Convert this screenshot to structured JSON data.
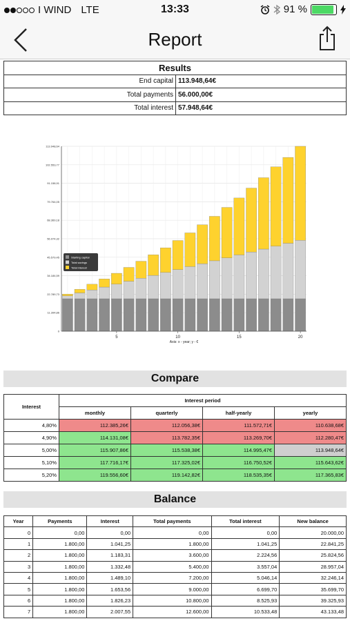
{
  "status": {
    "carrier": "I WIND",
    "network": "LTE",
    "time": "13:33",
    "battery": "91 %"
  },
  "nav": {
    "title": "Report"
  },
  "results": {
    "title": "Results",
    "rows": [
      {
        "label": "End capital",
        "value": "113.948,64€"
      },
      {
        "label": "Total payments",
        "value": "56.000,00€"
      },
      {
        "label": "Total interest",
        "value": "57.948,64€"
      }
    ]
  },
  "chart_data": {
    "type": "bar",
    "stacked": true,
    "x": [
      1,
      2,
      3,
      4,
      5,
      6,
      7,
      8,
      9,
      10,
      11,
      12,
      13,
      14,
      15,
      16,
      17,
      18,
      19,
      20
    ],
    "x_ticks": [
      "5",
      "10",
      "15",
      "20"
    ],
    "y_ticks": [
      "0",
      "11.394,86",
      "22.789,73",
      "34.184,59",
      "45.579,45",
      "56.974,32",
      "68.369,18",
      "79.764,05",
      "91.158,91",
      "102.553,77",
      "113.948,64"
    ],
    "xlabel": "Axis: x - year; y - €",
    "legend_position": "left",
    "ylim": [
      0,
      113948.64
    ],
    "series": [
      {
        "name": "Starting capital",
        "color": "#8c8c8c",
        "values": [
          20000,
          20000,
          20000,
          20000,
          20000,
          20000,
          20000,
          20000,
          20000,
          20000,
          20000,
          20000,
          20000,
          20000,
          20000,
          20000,
          20000,
          20000,
          20000,
          20000
        ]
      },
      {
        "name": "Total savings",
        "color": "#d2d2d2",
        "values": [
          1800,
          3600,
          5400,
          7200,
          9000,
          10800,
          12600,
          14400,
          16200,
          18000,
          19800,
          21600,
          23400,
          25200,
          27000,
          28800,
          30600,
          32400,
          34200,
          36000
        ]
      },
      {
        "name": "Total interest",
        "color": "#fed22e",
        "values": [
          1041,
          2225,
          3557,
          5046,
          6700,
          8526,
          10533,
          12720,
          15200,
          17900,
          20800,
          24000,
          27400,
          31100,
          35100,
          39400,
          44000,
          48900,
          52900,
          57949
        ]
      }
    ]
  },
  "compare": {
    "title": "Compare",
    "interest_label": "Interest",
    "period_label": "Interest period",
    "periods": [
      "monthly",
      "quarterly",
      "half-yearly",
      "yearly"
    ],
    "rows": [
      {
        "rate": "4,80%",
        "cells": [
          {
            "v": "112.385,26€",
            "c": "red"
          },
          {
            "v": "112.056,38€",
            "c": "red"
          },
          {
            "v": "111.572,71€",
            "c": "red"
          },
          {
            "v": "110.638,68€",
            "c": "red"
          }
        ]
      },
      {
        "rate": "4,90%",
        "cells": [
          {
            "v": "114.131,08€",
            "c": "green"
          },
          {
            "v": "113.782,35€",
            "c": "red"
          },
          {
            "v": "113.269,70€",
            "c": "red"
          },
          {
            "v": "112.280,47€",
            "c": "red"
          }
        ]
      },
      {
        "rate": "5,00%",
        "cells": [
          {
            "v": "115.907,86€",
            "c": "green"
          },
          {
            "v": "115.538,38€",
            "c": "green"
          },
          {
            "v": "114.995,47€",
            "c": "green"
          },
          {
            "v": "113.948,64€",
            "c": "grey"
          }
        ]
      },
      {
        "rate": "5,10%",
        "cells": [
          {
            "v": "117.716,17€",
            "c": "green"
          },
          {
            "v": "117.325,02€",
            "c": "green"
          },
          {
            "v": "116.750,52€",
            "c": "green"
          },
          {
            "v": "115.643,62€",
            "c": "green"
          }
        ]
      },
      {
        "rate": "5,20%",
        "cells": [
          {
            "v": "119.556,60€",
            "c": "green"
          },
          {
            "v": "119.142,82€",
            "c": "green"
          },
          {
            "v": "118.535,35€",
            "c": "green"
          },
          {
            "v": "117.365,83€",
            "c": "green"
          }
        ]
      }
    ],
    "colors": {
      "red": "#ef8a8a",
      "green": "#8ee58e",
      "grey": "#cfcfcf"
    }
  },
  "balance": {
    "title": "Balance",
    "headers": [
      "Year",
      "Payments",
      "Interest",
      "Total payments",
      "Total interest",
      "New balance"
    ],
    "rows": [
      [
        "0",
        "0,00",
        "0,00",
        "0,00",
        "0,00",
        "20.000,00"
      ],
      [
        "1",
        "1.800,00",
        "1.041,25",
        "1.800,00",
        "1.041,25",
        "22.841,25"
      ],
      [
        "2",
        "1.800,00",
        "1.183,31",
        "3.600,00",
        "2.224,56",
        "25.824,56"
      ],
      [
        "3",
        "1.800,00",
        "1.332,48",
        "5.400,00",
        "3.557,04",
        "28.957,04"
      ],
      [
        "4",
        "1.800,00",
        "1.489,10",
        "7.200,00",
        "5.046,14",
        "32.246,14"
      ],
      [
        "5",
        "1.800,00",
        "1.653,56",
        "9.000,00",
        "6.699,70",
        "35.699,70"
      ],
      [
        "6",
        "1.800,00",
        "1.826,23",
        "10.800,00",
        "8.525,93",
        "39.325,93"
      ],
      [
        "7",
        "1.800,00",
        "2.007,55",
        "12.600,00",
        "10.533,48",
        "43.133,48"
      ]
    ]
  }
}
